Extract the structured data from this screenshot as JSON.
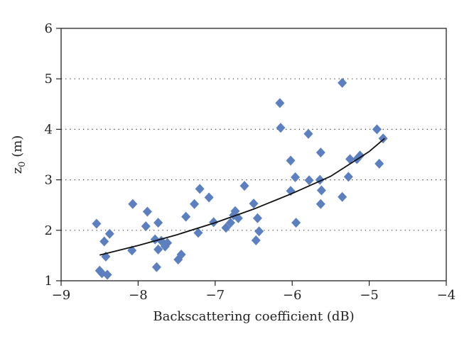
{
  "chart_data": {
    "type": "scatter",
    "xlabel": "Backscattering coefficient (dB)",
    "ylabel": {
      "main": "z",
      "sub": "0",
      "unit": " (m)"
    },
    "xlim": [
      -9,
      -4
    ],
    "ylim": [
      1,
      6
    ],
    "x_ticks": [
      -9,
      -8,
      -7,
      -6,
      -5,
      -4
    ],
    "x_tick_labels": [
      "−9",
      "−8",
      "−7",
      "−6",
      "−5",
      "−4"
    ],
    "y_ticks": [
      1,
      2,
      3,
      4,
      5,
      6
    ],
    "y_tick_labels": [
      "1",
      "2",
      "3",
      "4",
      "5",
      "6"
    ],
    "grid": {
      "y": true,
      "style": "dotted",
      "x": false
    },
    "marker": {
      "shape": "diamond",
      "color": "#5b7fbf"
    },
    "trendline": {
      "type": "exponential",
      "color": "#111111",
      "x": [
        -8.5,
        -8.0,
        -7.5,
        -7.0,
        -6.5,
        -6.0,
        -5.5,
        -5.0,
        -4.8
      ],
      "y": [
        1.51,
        1.7,
        1.91,
        2.15,
        2.42,
        2.73,
        3.07,
        3.56,
        3.82
      ]
    },
    "points": [
      {
        "x": -8.54,
        "y": 2.13
      },
      {
        "x": -8.5,
        "y": 1.2
      },
      {
        "x": -8.47,
        "y": 1.15
      },
      {
        "x": -8.44,
        "y": 1.78
      },
      {
        "x": -8.42,
        "y": 1.48
      },
      {
        "x": -8.4,
        "y": 1.12
      },
      {
        "x": -8.37,
        "y": 1.93
      },
      {
        "x": -8.07,
        "y": 2.52
      },
      {
        "x": -8.08,
        "y": 1.6
      },
      {
        "x": -7.9,
        "y": 2.08
      },
      {
        "x": -7.88,
        "y": 2.37
      },
      {
        "x": -7.78,
        "y": 1.82
      },
      {
        "x": -7.74,
        "y": 2.15
      },
      {
        "x": -7.76,
        "y": 1.27
      },
      {
        "x": -7.74,
        "y": 1.62
      },
      {
        "x": -7.7,
        "y": 1.79
      },
      {
        "x": -7.65,
        "y": 1.68
      },
      {
        "x": -7.62,
        "y": 1.75
      },
      {
        "x": -7.48,
        "y": 1.42
      },
      {
        "x": -7.44,
        "y": 1.52
      },
      {
        "x": -7.38,
        "y": 2.27
      },
      {
        "x": -7.27,
        "y": 2.52
      },
      {
        "x": -7.22,
        "y": 1.95
      },
      {
        "x": -7.2,
        "y": 2.82
      },
      {
        "x": -7.08,
        "y": 2.65
      },
      {
        "x": -7.02,
        "y": 2.16
      },
      {
        "x": -6.86,
        "y": 2.05
      },
      {
        "x": -6.8,
        "y": 2.15
      },
      {
        "x": -6.76,
        "y": 2.3
      },
      {
        "x": -6.74,
        "y": 2.38
      },
      {
        "x": -6.7,
        "y": 2.24
      },
      {
        "x": -6.62,
        "y": 2.88
      },
      {
        "x": -6.5,
        "y": 2.53
      },
      {
        "x": -6.47,
        "y": 1.8
      },
      {
        "x": -6.45,
        "y": 2.24
      },
      {
        "x": -6.43,
        "y": 1.98
      },
      {
        "x": -6.16,
        "y": 4.52
      },
      {
        "x": -6.15,
        "y": 4.03
      },
      {
        "x": -6.02,
        "y": 3.38
      },
      {
        "x": -6.02,
        "y": 2.78
      },
      {
        "x": -5.96,
        "y": 3.05
      },
      {
        "x": -5.95,
        "y": 2.15
      },
      {
        "x": -5.79,
        "y": 3.91
      },
      {
        "x": -5.78,
        "y": 2.99
      },
      {
        "x": -5.64,
        "y": 3.0
      },
      {
        "x": -5.63,
        "y": 3.54
      },
      {
        "x": -5.62,
        "y": 2.79
      },
      {
        "x": -5.63,
        "y": 2.52
      },
      {
        "x": -5.35,
        "y": 4.92
      },
      {
        "x": -5.35,
        "y": 2.66
      },
      {
        "x": -5.27,
        "y": 3.06
      },
      {
        "x": -5.25,
        "y": 3.41
      },
      {
        "x": -5.16,
        "y": 3.41
      },
      {
        "x": -5.12,
        "y": 3.48
      },
      {
        "x": -4.9,
        "y": 4.0
      },
      {
        "x": -4.87,
        "y": 3.32
      },
      {
        "x": -4.82,
        "y": 3.82
      }
    ]
  }
}
